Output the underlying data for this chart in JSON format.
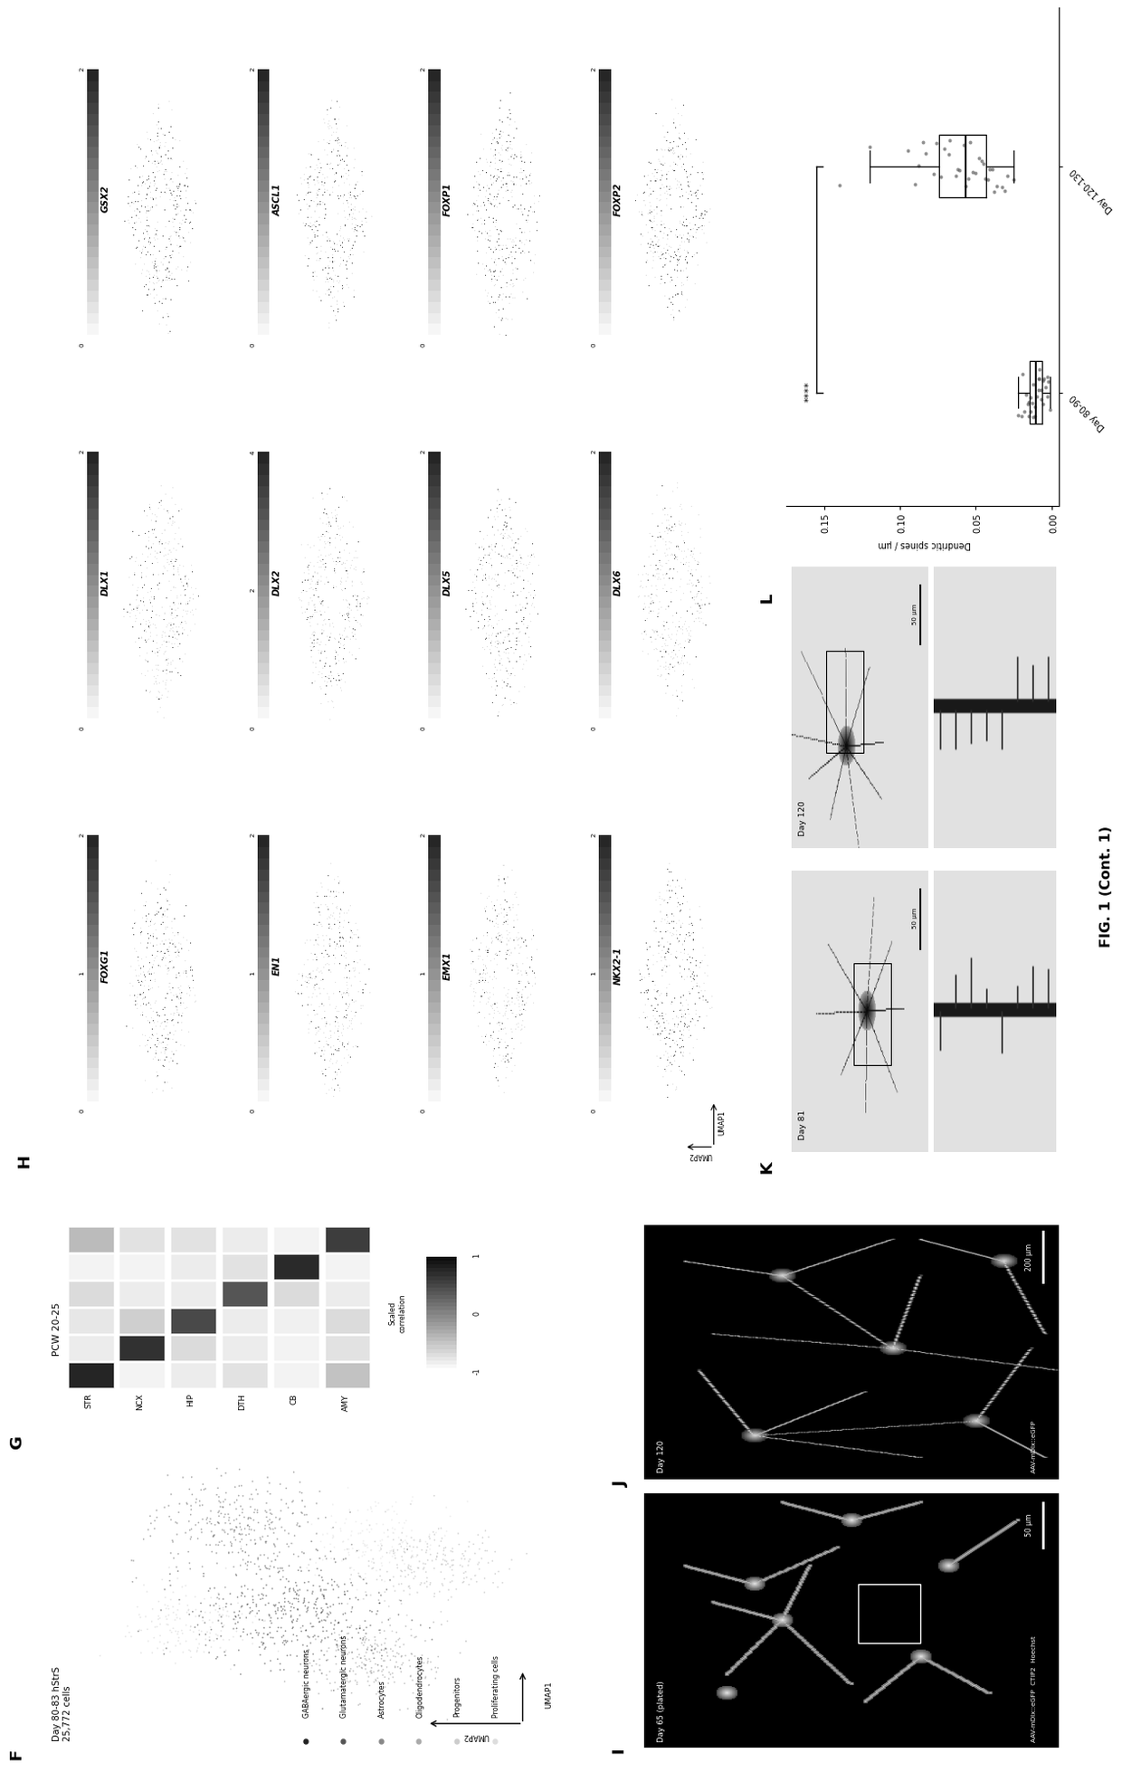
{
  "figure_title": "FIG. 1 (Cont. 1)",
  "panel_F_title": "Day 80-83 hStrS\n25,772 cells",
  "panel_G_title": "PCW 20-25",
  "panel_H_genes": [
    "FOXG1",
    "EN1",
    "EMX1",
    "NKX2-1",
    "DLX1",
    "DLX2",
    "DLX5",
    "DLX6",
    "GSX2",
    "ASCL1",
    "FOXP1",
    "FOXP2"
  ],
  "cell_types": [
    "GABAergic neurons",
    "Glutamatergic neurons",
    "Astrocytes",
    "Oligodendrocytes",
    "Progenitors",
    "Proliferating cells"
  ],
  "cell_type_colors": [
    "#222222",
    "#555555",
    "#888888",
    "#aaaaaa",
    "#cccccc",
    "#dddddd"
  ],
  "brain_regions": [
    "STR",
    "NCX",
    "HIP",
    "DTH",
    "CB",
    "AMY"
  ],
  "gene_grid": [
    [
      "FOXG1",
      "DLX1",
      "GSX2"
    ],
    [
      "EN1",
      "DLX2",
      "ASCL1"
    ],
    [
      "EMX1",
      "DLX5",
      "FOXP1"
    ],
    [
      "NKX2-1",
      "DLX6",
      "FOXP2"
    ]
  ],
  "gene_scale": {
    "FOXG1": [
      "2",
      "1",
      "0"
    ],
    "EN1": [
      "2",
      "1",
      "0"
    ],
    "EMX1": [
      "2",
      "1",
      "0"
    ],
    "NKX2-1": [
      "2",
      "1",
      "0"
    ],
    "DLX1": [
      "2",
      "0"
    ],
    "DLX2": [
      "4",
      "2",
      "0"
    ],
    "DLX5": [
      "2",
      "0"
    ],
    "DLX6": [
      "2",
      "0"
    ],
    "GSX2": [
      "2",
      "0"
    ],
    "ASCL1": [
      "2",
      "0"
    ],
    "FOXP1": [
      "2",
      "0"
    ],
    "FOXP2": [
      "2",
      "0"
    ]
  },
  "panel_L_ylabel": "Dendritic spines / μm",
  "panel_L_groups": [
    "Day 80-90",
    "Day 120-130"
  ],
  "panel_L_significance": "****",
  "background_color": "#ffffff",
  "day80_90_data": [
    0.008,
    0.012,
    0.005,
    0.018,
    0.022,
    0.003,
    0.015,
    0.009,
    0.011,
    0.007,
    0.014,
    0.006,
    0.019,
    0.004,
    0.013,
    0.016,
    0.002,
    0.01,
    0.02,
    0.008,
    0.017,
    0.001,
    0.012,
    0.006,
    0.015,
    0.009,
    0.011,
    0.003,
    0.007,
    0.014
  ],
  "day120_130_data": [
    0.045,
    0.062,
    0.038,
    0.071,
    0.055,
    0.09,
    0.048,
    0.033,
    0.078,
    0.052,
    0.041,
    0.067,
    0.083,
    0.029,
    0.058,
    0.095,
    0.044,
    0.073,
    0.036,
    0.061,
    0.085,
    0.05,
    0.039,
    0.076,
    0.054,
    0.042,
    0.068,
    0.031,
    0.057,
    0.088,
    0.046,
    0.063,
    0.14,
    0.025,
    0.12
  ]
}
